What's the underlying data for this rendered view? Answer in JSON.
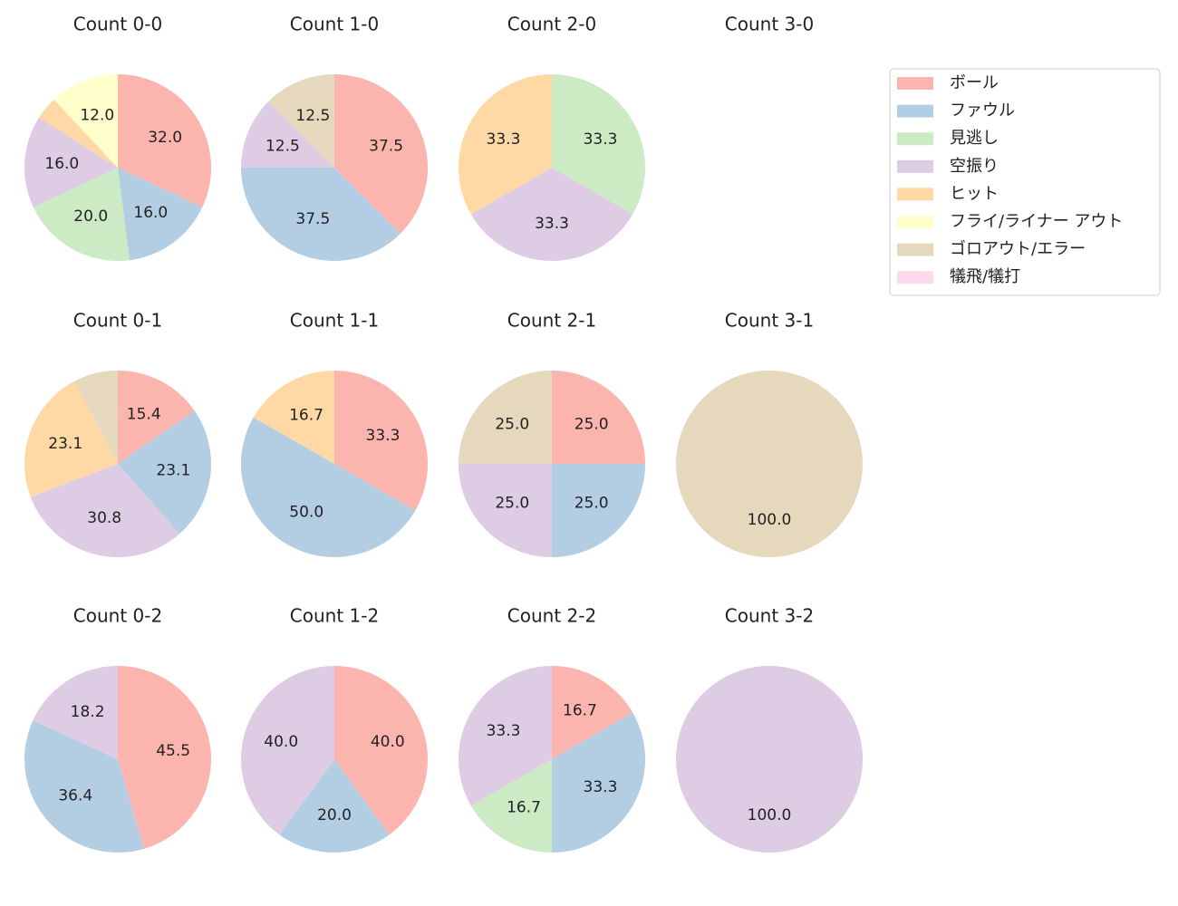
{
  "legend": {
    "categories": [
      "ボール",
      "ファウル",
      "見逃し",
      "空振り",
      "ヒット",
      "フライ/ライナー アウト",
      "ゴロアウト/エラー",
      "犠飛/犠打"
    ],
    "colors": [
      "#fbb4ae",
      "#b3cde3",
      "#ccebc5",
      "#decbe4",
      "#fed9a6",
      "#ffffcc",
      "#e5d8bd",
      "#fddaec"
    ]
  },
  "chart_data": [
    {
      "type": "pie",
      "title": "Count 0-0",
      "values": [
        32,
        16,
        20,
        16,
        4,
        12,
        0,
        0
      ],
      "value_labels": [
        "32.0",
        "16.0",
        "20.0",
        "16.0",
        null,
        "12.0",
        null,
        null
      ]
    },
    {
      "type": "pie",
      "title": "Count 1-0",
      "values": [
        37.5,
        37.5,
        0,
        12.5,
        0,
        0,
        12.5,
        0
      ],
      "value_labels": [
        "37.5",
        "37.5",
        null,
        "12.5",
        null,
        null,
        "12.5",
        null
      ]
    },
    {
      "type": "pie",
      "title": "Count 2-0",
      "values": [
        0,
        0,
        33.3,
        33.3,
        33.3,
        0,
        0,
        0
      ],
      "value_labels": [
        null,
        null,
        "33.3",
        "33.3",
        "33.3",
        null,
        null,
        null
      ]
    },
    {
      "type": "pie",
      "title": "Count 3-0"
    },
    {
      "type": "pie",
      "title": "Count 0-1",
      "values": [
        15.4,
        23.1,
        0,
        30.8,
        23.1,
        0,
        7.7,
        0
      ],
      "value_labels": [
        "15.4",
        "23.1",
        null,
        "30.8",
        "23.1",
        null,
        null,
        null
      ]
    },
    {
      "type": "pie",
      "title": "Count 1-1",
      "values": [
        33.3,
        50,
        0,
        0,
        16.7,
        0,
        0,
        0
      ],
      "value_labels": [
        "33.3",
        "50.0",
        null,
        null,
        "16.7",
        null,
        null,
        null
      ]
    },
    {
      "type": "pie",
      "title": "Count 2-1",
      "values": [
        25,
        25,
        0,
        25,
        0,
        0,
        25,
        0
      ],
      "value_labels": [
        "25.0",
        "25.0",
        null,
        "25.0",
        null,
        null,
        "25.0",
        null
      ]
    },
    {
      "type": "pie",
      "title": "Count 3-1",
      "values": [
        0,
        0,
        0,
        0,
        0,
        0,
        100,
        0
      ],
      "value_labels": [
        null,
        null,
        null,
        null,
        null,
        null,
        "100.0",
        null
      ]
    },
    {
      "type": "pie",
      "title": "Count 0-2",
      "values": [
        45.5,
        36.4,
        0,
        18.2,
        0,
        0,
        0,
        0
      ],
      "value_labels": [
        "45.5",
        "36.4",
        null,
        "18.2",
        null,
        null,
        null,
        null
      ]
    },
    {
      "type": "pie",
      "title": "Count 1-2",
      "values": [
        40,
        20,
        0,
        40,
        0,
        0,
        0,
        0
      ],
      "value_labels": [
        "40.0",
        "20.0",
        null,
        "40.0",
        null,
        null,
        null,
        null
      ]
    },
    {
      "type": "pie",
      "title": "Count 2-2",
      "values": [
        16.7,
        33.3,
        16.7,
        33.3,
        0,
        0,
        0,
        0
      ],
      "value_labels": [
        "16.7",
        "33.3",
        "16.7",
        "33.3",
        null,
        null,
        null,
        null
      ]
    },
    {
      "type": "pie",
      "title": "Count 3-2",
      "values": [
        0,
        0,
        0,
        100,
        0,
        0,
        0,
        0
      ],
      "value_labels": [
        null,
        null,
        null,
        "100.0",
        null,
        null,
        null,
        null
      ]
    }
  ]
}
